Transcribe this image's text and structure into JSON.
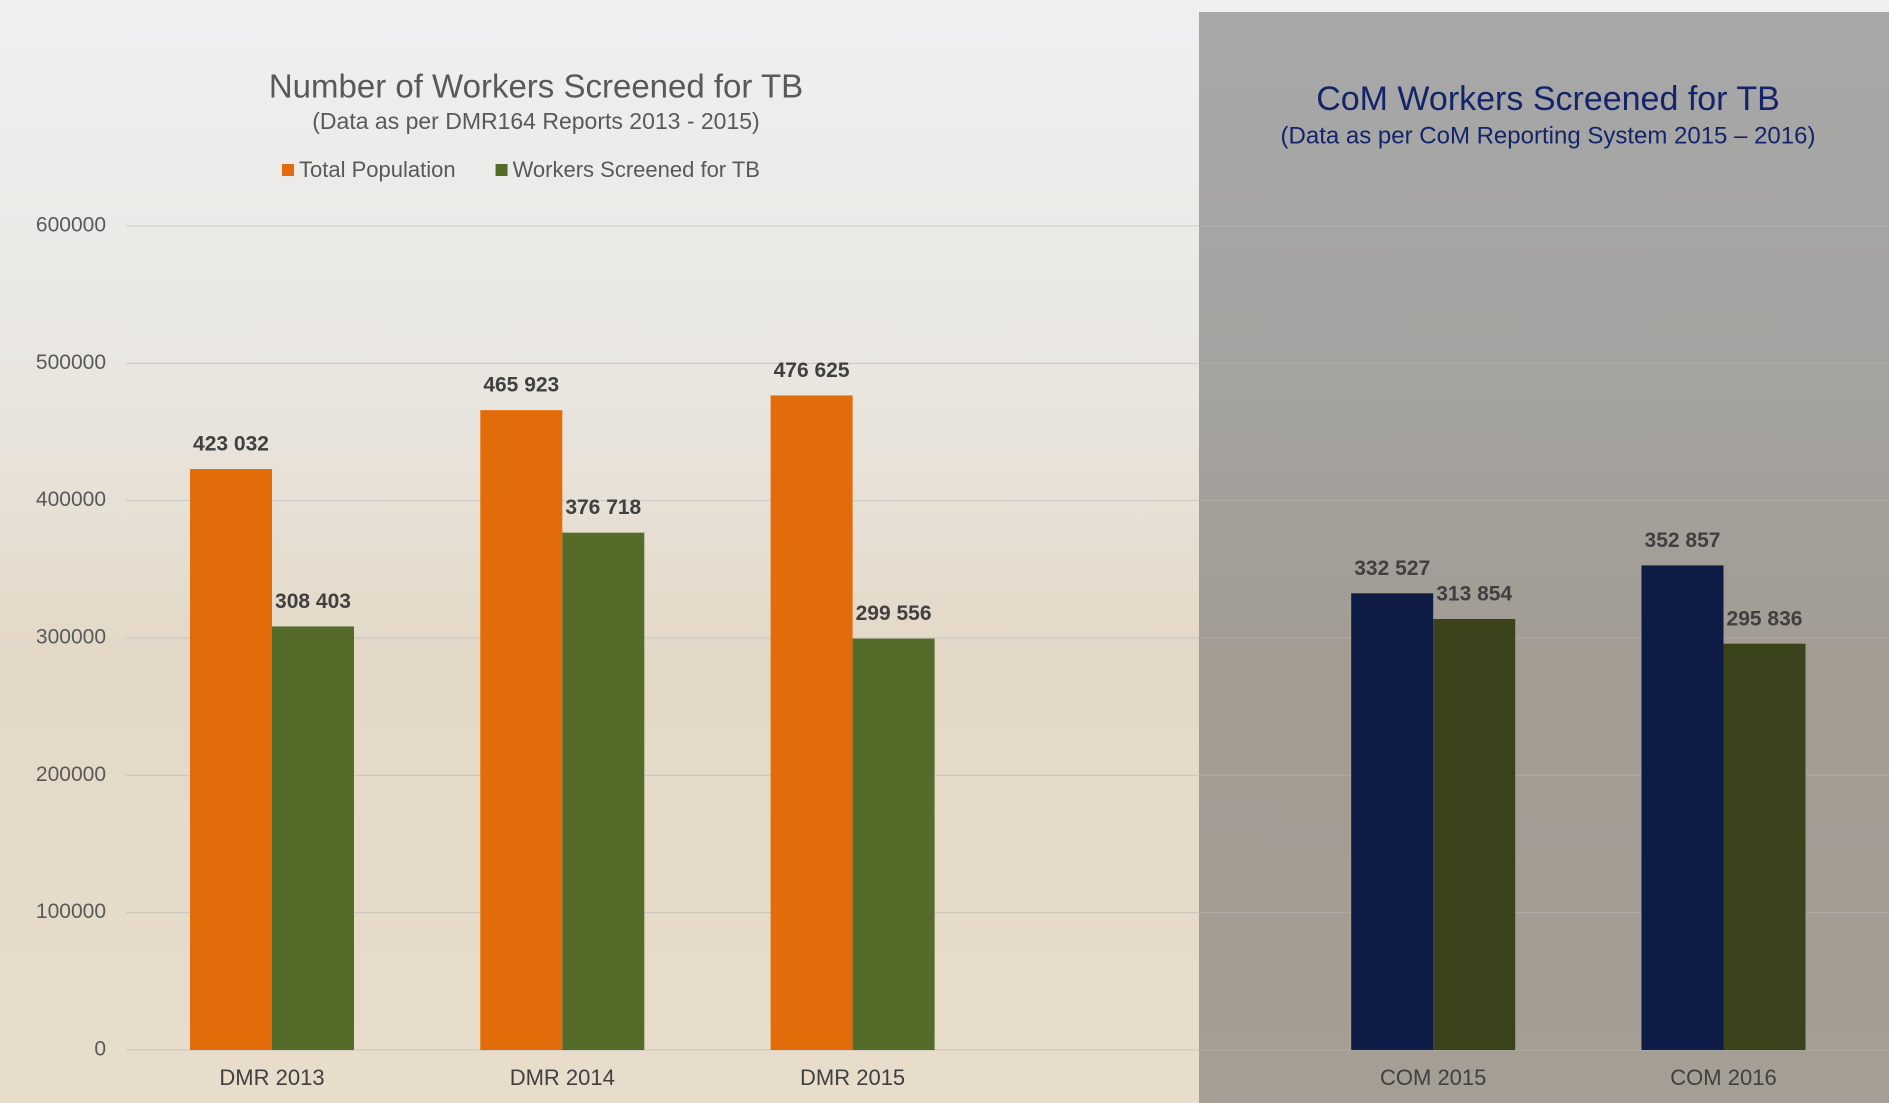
{
  "chart_data": {
    "type": "bar",
    "title": "Number of Workers Screened for TB",
    "subtitle": "(Data as per DMR164  Reports 2013 - 2015)",
    "panel_title": "CoM Workers Screened for TB",
    "panel_subtitle": "(Data as per CoM Reporting System 2015 – 2016)",
    "categories": [
      "DMR 2013",
      "DMR 2014",
      "DMR 2015",
      null,
      "COM 2015",
      "COM 2016"
    ],
    "series": [
      {
        "name": "Total Population",
        "color": "#e36c0a",
        "colors": [
          "#e36c0a",
          "#e36c0a",
          "#e36c0a",
          null,
          "#0d1b45",
          "#0d1b45"
        ],
        "values": [
          423032,
          465923,
          476625,
          null,
          332527,
          352857
        ],
        "value_labels": [
          "423 032",
          "465 923",
          "476 625",
          null,
          "332 527",
          "352 857"
        ]
      },
      {
        "name": "Workers Screened for TB",
        "color": "#556b2a",
        "colors": [
          "#556b2a",
          "#556b2a",
          "#556b2a",
          null,
          "#3a431b",
          "#3a431b"
        ],
        "values": [
          308403,
          376718,
          299556,
          null,
          313854,
          295836
        ],
        "value_labels": [
          "308 403",
          "376 718",
          "299 556",
          null,
          "313 854",
          "295 836"
        ]
      }
    ],
    "ylim": [
      0,
      600000
    ],
    "yticks": [
      0,
      100000,
      200000,
      300000,
      400000,
      500000,
      600000
    ],
    "grid": true
  }
}
